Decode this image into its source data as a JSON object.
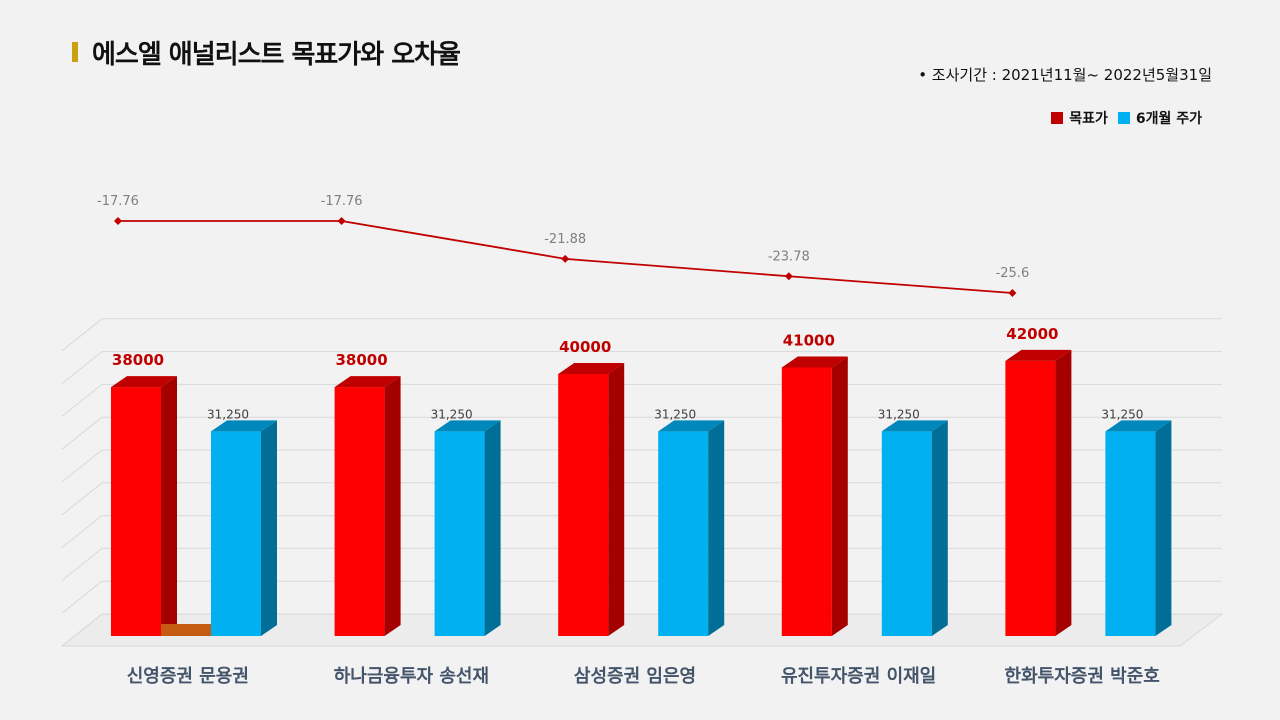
{
  "title": "에스엘 애널리스트 목표가와 오차율",
  "period": "•  조사기간 : 2021년11월~ 2022년5월31일",
  "legend": {
    "target": "목표가",
    "price": "6개월 주가"
  },
  "colors": {
    "target": "#ff0000",
    "price": "#00b0f0",
    "line": "#c00000",
    "accent": "#c9a00e"
  },
  "chart_data": {
    "type": "bar",
    "categories": [
      "신영증권 문용권",
      "하나금융투자 송선재",
      "삼성증권 임은영",
      "유진투자증권 이재일",
      "한화투자증권 박준호"
    ],
    "series": [
      {
        "name": "목표가",
        "values": [
          38000,
          38000,
          40000,
          41000,
          42000
        ],
        "labels": [
          "38000",
          "38000",
          "40000",
          "41000",
          "42000"
        ]
      },
      {
        "name": "6개월 주가",
        "values": [
          31250,
          31250,
          31250,
          31250,
          31250
        ],
        "labels": [
          "31,250",
          "31,250",
          "31,250",
          "31,250",
          "31,250"
        ]
      }
    ],
    "error_rate": {
      "values": [
        -17.76,
        -17.76,
        -21.88,
        -23.78,
        -25.6
      ],
      "labels": [
        "-17.76",
        "-17.76",
        "-21.88",
        "-23.78",
        "-25.6"
      ]
    },
    "ylim": [
      0,
      48000
    ]
  }
}
